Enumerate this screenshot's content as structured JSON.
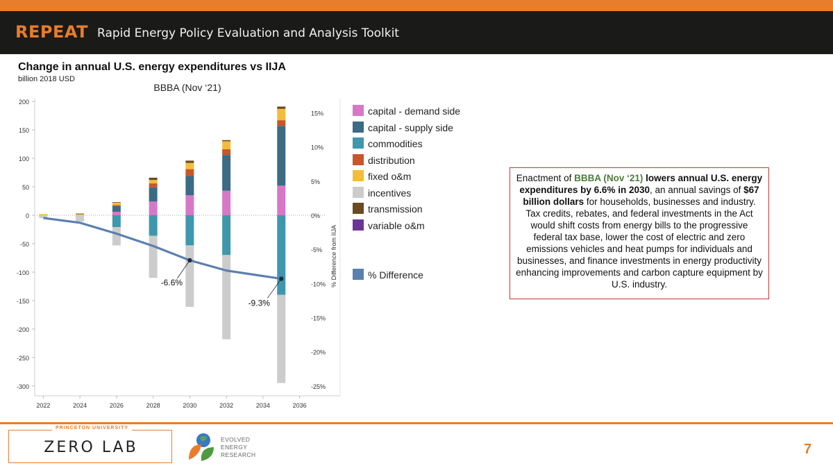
{
  "header": {
    "brand": "REPEAT",
    "subtitle": "Rapid Energy Policy Evaluation and Analysis Toolkit"
  },
  "chart_data": {
    "type": "bar",
    "title": "Change in annual U.S. energy expenditures vs IIJA",
    "unit": "billion 2018 USD",
    "series_title": "BBBA (Nov ‘21)",
    "stacked": true,
    "categories": [
      "2022",
      "2024",
      "2026",
      "2028",
      "2030",
      "2032",
      "2035"
    ],
    "x_ticks": [
      "2022",
      "2024",
      "2026",
      "2028",
      "2030",
      "2032",
      "2034",
      "2036"
    ],
    "ylim": [
      -310,
      205
    ],
    "y_ticks": [
      200,
      150,
      100,
      50,
      0,
      -50,
      -100,
      -150,
      -200,
      -250,
      -300
    ],
    "y2lim": [
      -0.2583,
      0.1708
    ],
    "y2_ticks": [
      0.15,
      0.1,
      0.05,
      0,
      -0.05,
      -0.1,
      -0.15,
      -0.2,
      -0.25
    ],
    "y2_tick_labels": [
      "15%",
      "10%",
      "5%",
      "0%",
      "-5%",
      "-10%",
      "-15%",
      "-20%",
      "-25%"
    ],
    "y2label": "% Difference from IIJA",
    "legend_position": "right",
    "series": [
      {
        "name": "capital - demand side",
        "color": "#d678c7",
        "values": [
          0,
          0,
          6,
          24,
          35,
          43,
          52
        ]
      },
      {
        "name": "capital - supply side",
        "color": "#3b6b85",
        "values": [
          0,
          0,
          10,
          25,
          34,
          63,
          105
        ]
      },
      {
        "name": "commodities",
        "color": "#3f97ad",
        "values": [
          0,
          0,
          -21,
          -36,
          -53,
          -70,
          -140
        ]
      },
      {
        "name": "distribution",
        "color": "#c9552a",
        "values": [
          0,
          0,
          2,
          7,
          12,
          10,
          10
        ]
      },
      {
        "name": "fixed o&m",
        "color": "#f3bd3b",
        "values": [
          2,
          2,
          4,
          6,
          11,
          14,
          20
        ]
      },
      {
        "name": "incentives",
        "color": "#cccccc",
        "values": [
          -5,
          -11,
          -32,
          -74,
          -108,
          -148,
          -155
        ]
      },
      {
        "name": "transmission",
        "color": "#6b4a22",
        "values": [
          0,
          1,
          1,
          4,
          4,
          2,
          4
        ]
      },
      {
        "name": "variable o&m",
        "color": "#6a3596",
        "values": [
          0,
          0,
          0,
          0,
          0,
          0,
          0
        ]
      }
    ],
    "line": {
      "name": "% Difference",
      "color": "#5b7faf",
      "x": [
        2022,
        2024,
        2026,
        2028,
        2030,
        2032,
        2035
      ],
      "values": [
        -0.004,
        -0.011,
        -0.027,
        -0.045,
        -0.066,
        -0.081,
        -0.093
      ]
    },
    "annotations": [
      {
        "label": "-6.6%",
        "x": 2030,
        "value": -0.066
      },
      {
        "label": "-9.3%",
        "x": 2035,
        "value": -0.093
      }
    ]
  },
  "callout": {
    "p1": "Enactment of ",
    "p2": "BBBA (Nov ‘21)",
    "p3": " ",
    "p4": "lowers annual U.S. energy expenditures by 6.6% in 2030",
    "p5": ", an annual savings of ",
    "p6": "$67 billion dollars",
    "p7": " for households, businesses and industry. Tax credits, rebates, and federal investments in the Act would shift costs from energy bills to the progressive federal tax base, lower the cost of electric and zero emissions vehicles and heat pumps for individuals and businesses, and finance investments in energy productivity enhancing improvements and carbon capture equipment by U.S. industry."
  },
  "footer": {
    "university": "PRINCETON UNIVERSITY",
    "lab": "ZERO LAB",
    "partner_line1": "EVOLVED",
    "partner_line2": "ENERGY",
    "partner_line3": "RESEARCH",
    "page_number": "7"
  },
  "colors": {
    "accent": "#e87d2b",
    "banner": "#1a1a18",
    "callout_border": "#c0392b",
    "callout_highlight": "#4b7d3a"
  }
}
